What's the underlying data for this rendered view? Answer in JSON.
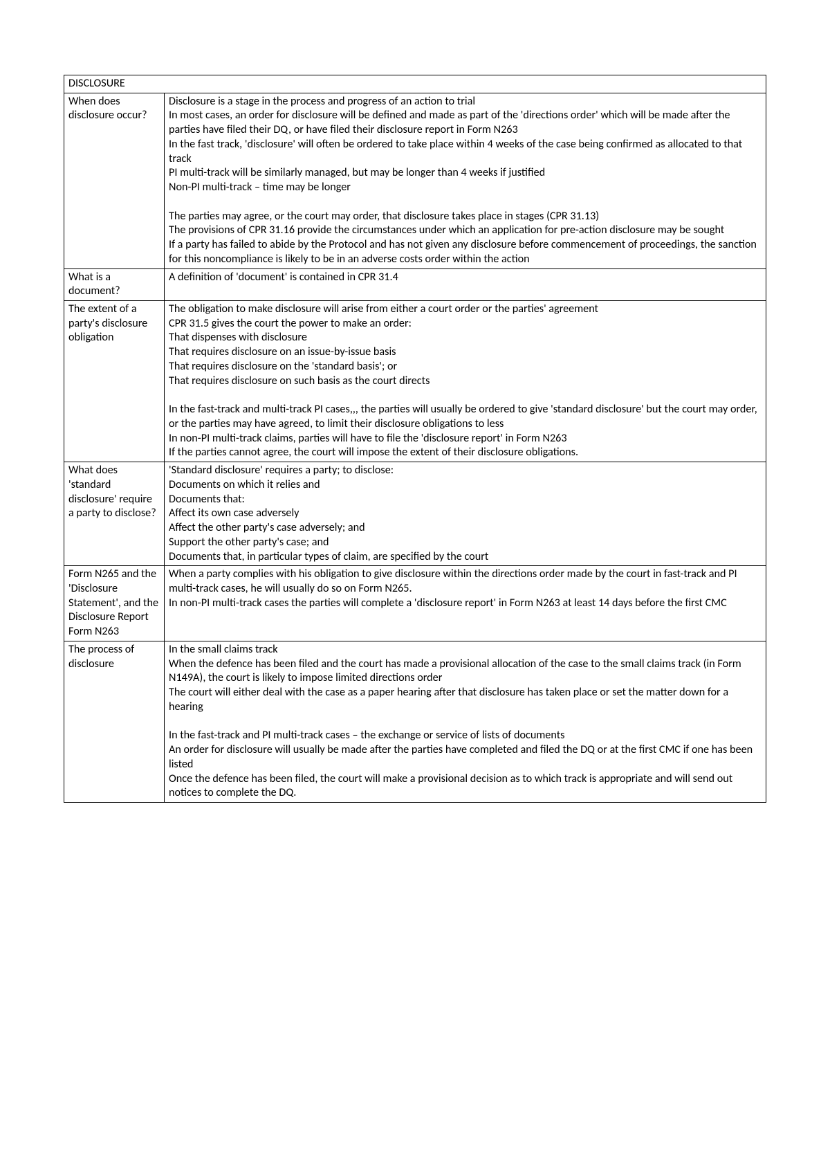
{
  "table": {
    "header": "DISCLOSURE",
    "rows": [
      {
        "label": "When does disclosure occur?",
        "content": [
          "Disclosure is a stage in the process and progress of an action to trial",
          "In most cases, an order for disclosure will be defined and made as part of the 'directions order' which will be made after the parties have filed their DQ, or have filed their disclosure report in Form N263",
          "In the fast track, 'disclosure' will often be ordered to take place within 4 weeks of the case being confirmed as allocated to that track",
          "PI multi-track will be similarly managed, but may be longer than 4 weeks if justified",
          "Non-PI multi-track – time may be longer",
          "",
          "The parties may agree, or the court may order, that disclosure takes place in stages (CPR 31.13)",
          "The provisions of CPR 31.16 provide the circumstances under which an application for pre-action disclosure may be sought",
          "If a party has failed to abide by the Protocol and has not given any disclosure before commencement of proceedings, the sanction for this noncompliance is likely to be in an adverse costs order within the action"
        ]
      },
      {
        "label": "What is a document?",
        "content": [
          "A definition of 'document' is contained in CPR 31.4"
        ]
      },
      {
        "label": "The extent of a party's disclosure obligation",
        "content": [
          "The obligation to make disclosure will arise from either a court order or the parties' agreement",
          "CPR 31.5 gives the court the power to make an order:",
          "That dispenses with disclosure",
          "That requires disclosure on an issue-by-issue basis",
          "That requires disclosure on the 'standard basis'; or",
          "That requires disclosure on such basis as the court directs",
          "",
          "In the fast-track and multi-track PI cases,,, the parties will usually be ordered to give 'standard disclosure' but the court may order, or the parties may have agreed, to limit their disclosure obligations to less",
          "In non-PI multi-track claims, parties will have to file the 'disclosure report' in Form N263",
          "If the parties cannot agree, the court will impose the extent of their disclosure obligations."
        ]
      },
      {
        "label": "What does 'standard disclosure' require a party to disclose?",
        "content": [
          "'Standard disclosure' requires a party; to disclose:",
          "Documents on which it relies and",
          "Documents that:",
          "Affect its own case adversely",
          "Affect the other party's case adversely; and",
          "Support the other party's case; and",
          "Documents that, in particular types of claim, are specified by the court"
        ]
      },
      {
        "label": "Form N265 and the 'Disclosure Statement', and the Disclosure Report Form N263",
        "content": [
          "When a party complies with his obligation to give disclosure within the directions order made by the court in fast-track and PI multi-track cases, he will usually do so on Form N265.",
          "In non-PI multi-track cases the parties will complete a 'disclosure report' in Form N263 at least 14 days before the first CMC"
        ]
      },
      {
        "label": "The process of disclosure",
        "content": [
          "In the small claims track",
          "When the defence has been filed and the court has made a provisional allocation of the case to the small claims track (in Form N149A), the court is likely to impose limited directions order",
          "The court will either deal with the case as a paper hearing after that disclosure has taken place or set the matter down for a hearing",
          "",
          "In the fast-track and PI multi-track cases – the exchange or service of lists of documents",
          "An order for disclosure will usually be made after the parties have completed and filed the DQ or at the first CMC if one has been listed",
          "Once the defence has been filed, the court will make a provisional decision as to which track is appropriate and will send out notices to complete the DQ."
        ]
      }
    ]
  }
}
